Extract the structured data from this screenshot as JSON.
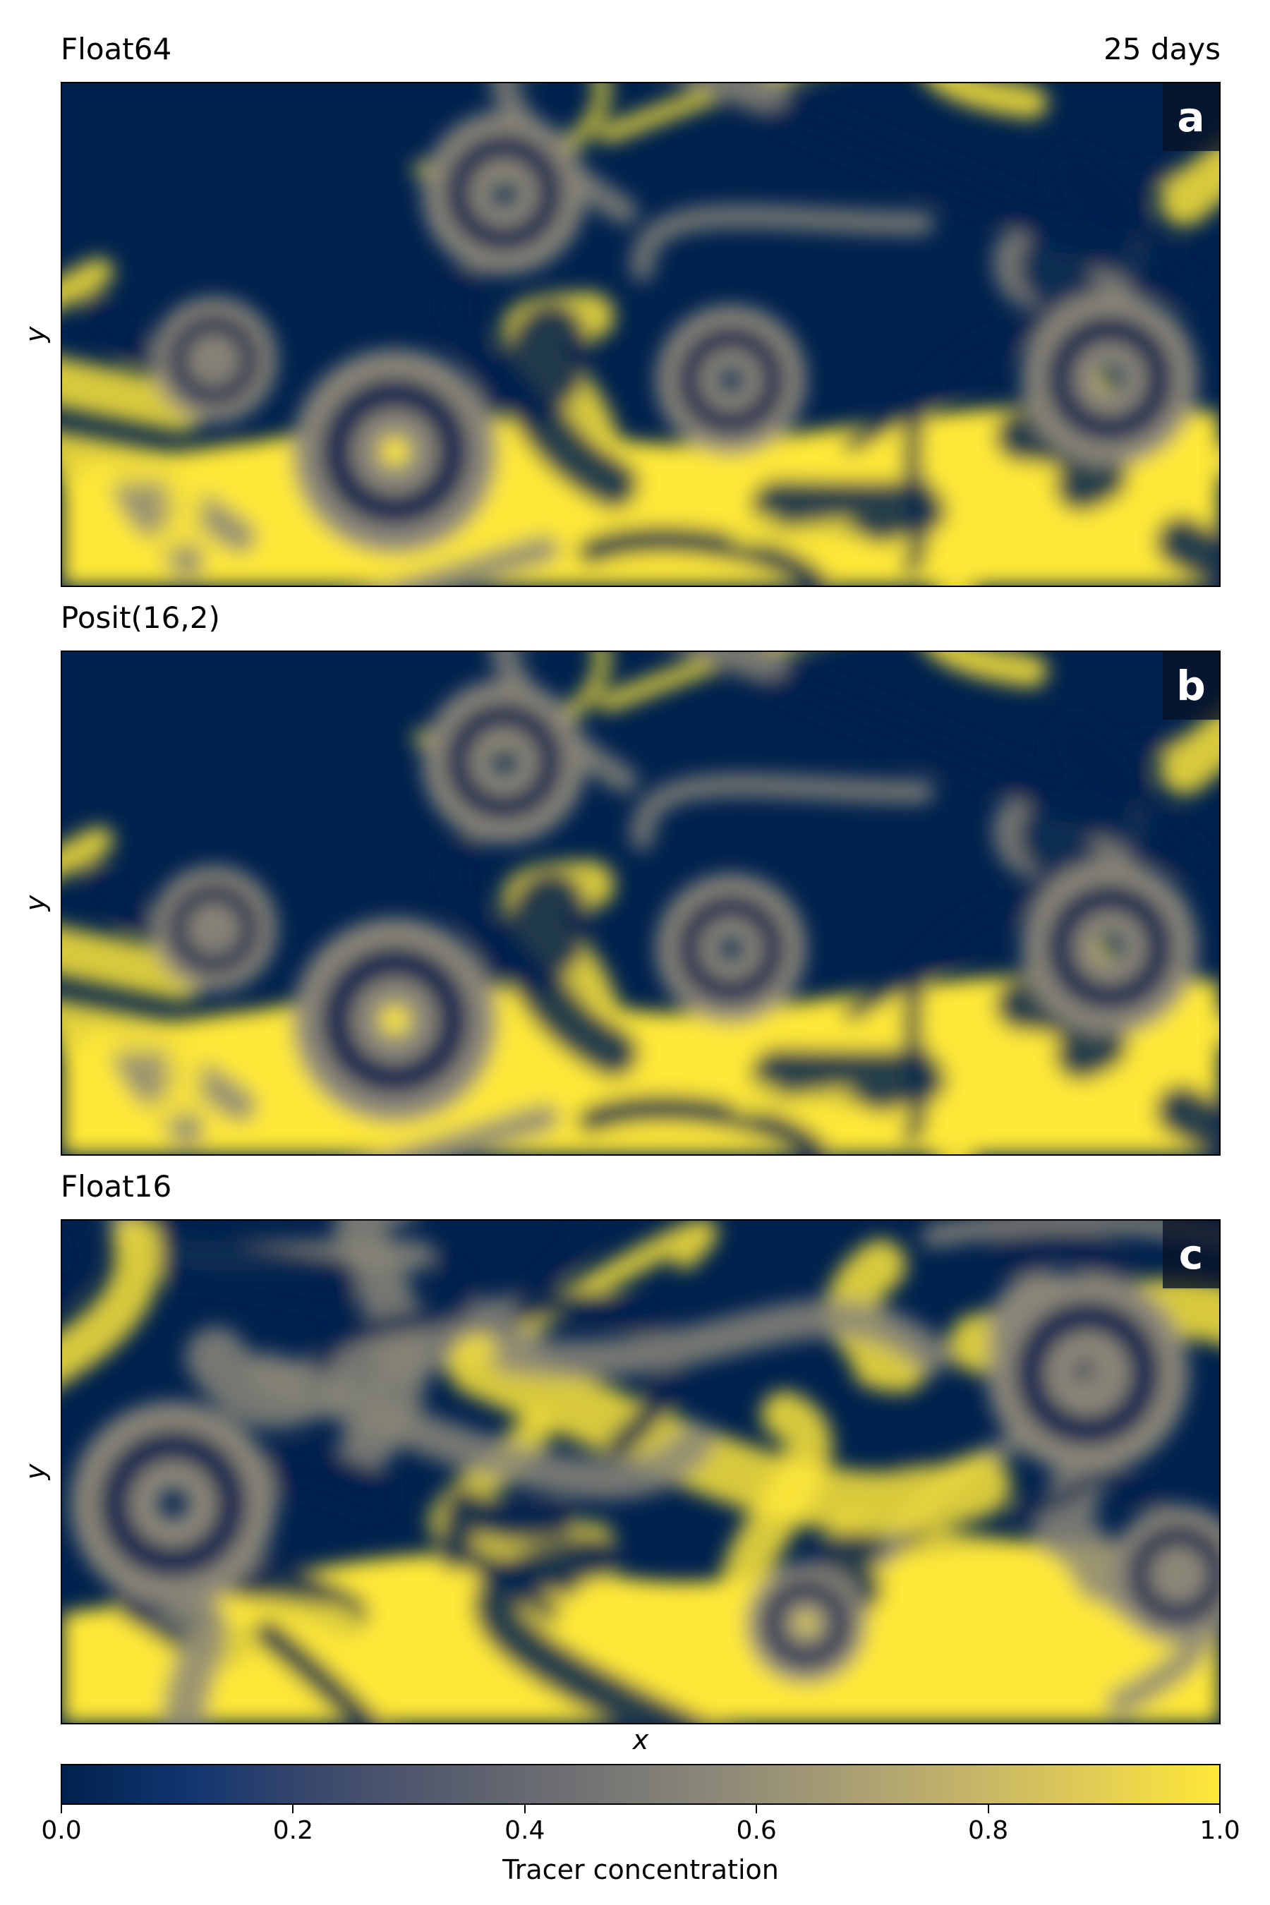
{
  "chart_data": {
    "type": "heatmap",
    "colormap": "cividis",
    "panels": [
      {
        "title": "Float64",
        "label": "a",
        "ylabel": "y",
        "time_label": "25 days",
        "seed": 11
      },
      {
        "title": "Posit(16,2)",
        "label": "b",
        "ylabel": "y",
        "seed": 11
      },
      {
        "title": "Float16",
        "label": "c",
        "ylabel": "y",
        "seed": 37
      }
    ],
    "xlabel": "x",
    "colorbar": {
      "label": "Tracer concentration",
      "ticks": [
        "0.0",
        "0.2",
        "0.4",
        "0.6",
        "0.8",
        "1.0"
      ],
      "range": [
        0.0,
        1.0
      ],
      "colors": [
        "#00224e",
        "#123570",
        "#3b496c",
        "#575d6d",
        "#707173",
        "#8a8678",
        "#a59c74",
        "#c3b369",
        "#e1cc55",
        "#fee838"
      ]
    }
  }
}
